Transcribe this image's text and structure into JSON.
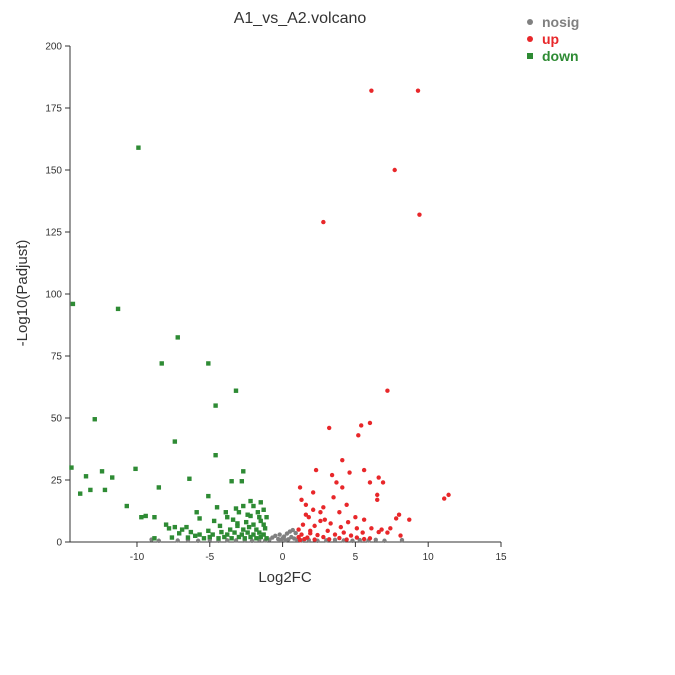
{
  "chart_data": {
    "type": "scatter",
    "title": "A1_vs_A2.volcano",
    "xlabel": "Log2FC",
    "ylabel": "-Log10(Padjust)",
    "xlim": [
      -14.6,
      15
    ],
    "ylim": [
      0,
      200
    ],
    "xticks": [
      "-10",
      "-5",
      "0",
      "5",
      "10",
      "15"
    ],
    "yticks": [
      "0",
      "25",
      "50",
      "75",
      "100",
      "125",
      "150",
      "175",
      "200"
    ],
    "grid": false,
    "legend_position": "top-right",
    "series": [
      {
        "name": "nosig",
        "color": "#808080",
        "shape": "circle",
        "points": [
          [
            -9,
            1
          ],
          [
            -8.5,
            0.5
          ],
          [
            -7.2,
            0.6
          ],
          [
            -6.5,
            0.8
          ],
          [
            -5.8,
            0.5
          ],
          [
            -5,
            0.9
          ],
          [
            -4.4,
            0.5
          ],
          [
            -3.8,
            0.7
          ],
          [
            -3.2,
            0.6
          ],
          [
            -2.6,
            0.8
          ],
          [
            -2.1,
            0.5
          ],
          [
            -1.6,
            0.9
          ],
          [
            -1.2,
            0.6
          ],
          [
            -0.9,
            1
          ],
          [
            -0.7,
            1.8
          ],
          [
            -0.5,
            2.5
          ],
          [
            -0.3,
            1.2
          ],
          [
            -0.2,
            3
          ],
          [
            -0.1,
            0.8
          ],
          [
            0,
            1.5
          ],
          [
            0.1,
            2.2
          ],
          [
            0.2,
            0.7
          ],
          [
            0.3,
            3.4
          ],
          [
            0.4,
            1.1
          ],
          [
            0.5,
            4.2
          ],
          [
            0.6,
            2
          ],
          [
            0.7,
            4.8
          ],
          [
            0.8,
            1.4
          ],
          [
            0.9,
            3.6
          ],
          [
            1,
            0.9
          ],
          [
            1.3,
            0.6
          ],
          [
            1.8,
            0.8
          ],
          [
            2.4,
            0.5
          ],
          [
            3,
            0.7
          ],
          [
            3.6,
            0.9
          ],
          [
            4.2,
            0.6
          ],
          [
            4.8,
            0.5
          ],
          [
            5.3,
            0.8
          ],
          [
            5.9,
            0.6
          ],
          [
            6.4,
            0.9
          ],
          [
            7,
            0.5
          ],
          [
            8.2,
            0.8
          ]
        ]
      },
      {
        "name": "up",
        "color": "#e8272a",
        "shape": "circle",
        "points": [
          [
            6.1,
            182
          ],
          [
            9.3,
            182
          ],
          [
            7.7,
            150
          ],
          [
            9.4,
            132
          ],
          [
            2.8,
            129
          ],
          [
            7.2,
            61
          ],
          [
            6,
            48
          ],
          [
            5.4,
            47
          ],
          [
            3.2,
            46
          ],
          [
            5.2,
            43
          ],
          [
            4.1,
            33
          ],
          [
            2.3,
            29
          ],
          [
            5.6,
            29
          ],
          [
            4.6,
            28
          ],
          [
            3.4,
            27
          ],
          [
            6.6,
            26
          ],
          [
            6,
            24
          ],
          [
            6.9,
            24
          ],
          [
            1.2,
            22
          ],
          [
            4.1,
            22
          ],
          [
            6.5,
            19
          ],
          [
            11.4,
            19
          ],
          [
            11.1,
            17.5
          ],
          [
            6.5,
            17
          ],
          [
            1.6,
            15
          ],
          [
            2.8,
            14
          ],
          [
            2.1,
            13
          ],
          [
            3.9,
            12
          ],
          [
            8,
            11
          ],
          [
            5,
            10
          ],
          [
            7.8,
            9.5
          ],
          [
            5.6,
            9
          ],
          [
            8.7,
            9
          ],
          [
            1.8,
            10
          ],
          [
            2.6,
            8.5
          ],
          [
            3.3,
            7.5
          ],
          [
            4.5,
            8
          ],
          [
            1.4,
            7
          ],
          [
            2.2,
            6.5
          ],
          [
            4,
            6
          ],
          [
            5.1,
            5.5
          ],
          [
            6.1,
            5.5
          ],
          [
            6.8,
            5
          ],
          [
            7.4,
            5.5
          ],
          [
            1.1,
            5
          ],
          [
            1.9,
            4.5
          ],
          [
            3.1,
            4.5
          ],
          [
            4.2,
            3.8
          ],
          [
            5.5,
            3.8
          ],
          [
            6.6,
            4
          ],
          [
            7.2,
            3.8
          ],
          [
            1.3,
            3
          ],
          [
            2.4,
            2.8
          ],
          [
            3.6,
            3
          ],
          [
            4.7,
            2.6
          ],
          [
            8.1,
            2.6
          ],
          [
            1.1,
            2
          ],
          [
            1.7,
            1.8
          ],
          [
            2.8,
            2
          ],
          [
            3.9,
            1.6
          ],
          [
            5.1,
            1.8
          ],
          [
            6,
            1.5
          ],
          [
            1.5,
            1.2
          ],
          [
            2.2,
            1
          ],
          [
            3.2,
            1.1
          ],
          [
            4.4,
            1
          ],
          [
            5.6,
            1.2
          ],
          [
            1.2,
            0.8
          ],
          [
            1.9,
            3.5
          ],
          [
            2.6,
            12
          ],
          [
            3.5,
            18
          ],
          [
            2.1,
            20
          ],
          [
            1.3,
            17
          ],
          [
            4.4,
            15
          ],
          [
            3.7,
            24
          ],
          [
            2.9,
            9
          ],
          [
            1.6,
            11
          ]
        ]
      },
      {
        "name": "down",
        "color": "#2e8b34",
        "shape": "square",
        "points": [
          [
            -9.9,
            159
          ],
          [
            -14.4,
            96
          ],
          [
            -11.3,
            94
          ],
          [
            -7.2,
            82.5
          ],
          [
            -8.3,
            72
          ],
          [
            -5.1,
            72
          ],
          [
            -3.2,
            61
          ],
          [
            -4.6,
            55
          ],
          [
            -12.9,
            49.5
          ],
          [
            -7.4,
            40.5
          ],
          [
            -4.6,
            35
          ],
          [
            -14.5,
            30
          ],
          [
            -10.1,
            29.5
          ],
          [
            -12.4,
            28.5
          ],
          [
            -2.7,
            28.5
          ],
          [
            -13.5,
            26.5
          ],
          [
            -11.7,
            26
          ],
          [
            -6.4,
            25.5
          ],
          [
            -3.5,
            24.5
          ],
          [
            -2.8,
            24.5
          ],
          [
            -13.2,
            21
          ],
          [
            -12.2,
            21
          ],
          [
            -8.5,
            22
          ],
          [
            -13.9,
            19.5
          ],
          [
            -5.1,
            18.5
          ],
          [
            -2.2,
            16.5
          ],
          [
            -1.5,
            16
          ],
          [
            -10.7,
            14.5
          ],
          [
            -4.5,
            14
          ],
          [
            -2.7,
            14.5
          ],
          [
            -2,
            14.5
          ],
          [
            -3.2,
            13.5
          ],
          [
            -5.9,
            12
          ],
          [
            -9.4,
            10.5
          ],
          [
            -1.3,
            13
          ],
          [
            -3.9,
            12
          ],
          [
            -3,
            12
          ],
          [
            -1.7,
            12
          ],
          [
            -9.7,
            10
          ],
          [
            -8.8,
            10
          ],
          [
            -5.7,
            9.5
          ],
          [
            -3.8,
            10
          ],
          [
            -2.2,
            10.5
          ],
          [
            -1.1,
            10
          ],
          [
            -4.7,
            8.5
          ],
          [
            -3.4,
            9
          ],
          [
            -2.5,
            8
          ],
          [
            -1.5,
            8.5
          ],
          [
            -8,
            7
          ],
          [
            -7.4,
            6
          ],
          [
            -6.6,
            6
          ],
          [
            -4.3,
            6.5
          ],
          [
            -3.1,
            6.5
          ],
          [
            -2.3,
            6
          ],
          [
            -1.3,
            7
          ],
          [
            -7.8,
            5.5
          ],
          [
            -6.9,
            5
          ],
          [
            -3.6,
            5
          ],
          [
            -2.7,
            5
          ],
          [
            -1.8,
            5
          ],
          [
            -1.2,
            5.5
          ],
          [
            -6.3,
            4
          ],
          [
            -5.1,
            4.5
          ],
          [
            -4.2,
            4
          ],
          [
            -3.3,
            3.8
          ],
          [
            -2.4,
            3.8
          ],
          [
            -1.6,
            3.8
          ],
          [
            -7.1,
            3.5
          ],
          [
            -5.7,
            3
          ],
          [
            -4.8,
            3
          ],
          [
            -3.8,
            3
          ],
          [
            -2.8,
            3
          ],
          [
            -2,
            3
          ],
          [
            -1.3,
            3
          ],
          [
            -6,
            2.5
          ],
          [
            -5,
            2
          ],
          [
            -4,
            2
          ],
          [
            -3,
            2
          ],
          [
            -2.2,
            2
          ],
          [
            -1.5,
            2
          ],
          [
            -7.6,
            1.8
          ],
          [
            -6.5,
            1.8
          ],
          [
            -5.4,
            1.5
          ],
          [
            -4.4,
            1.5
          ],
          [
            -3.5,
            1.5
          ],
          [
            -2.6,
            1.5
          ],
          [
            -1.8,
            1.5
          ],
          [
            -1.1,
            1.5
          ],
          [
            -8.8,
            1.5
          ],
          [
            -3.1,
            7.5
          ],
          [
            -2,
            7
          ],
          [
            -1.6,
            10
          ],
          [
            -2.4,
            11
          ]
        ]
      }
    ]
  }
}
